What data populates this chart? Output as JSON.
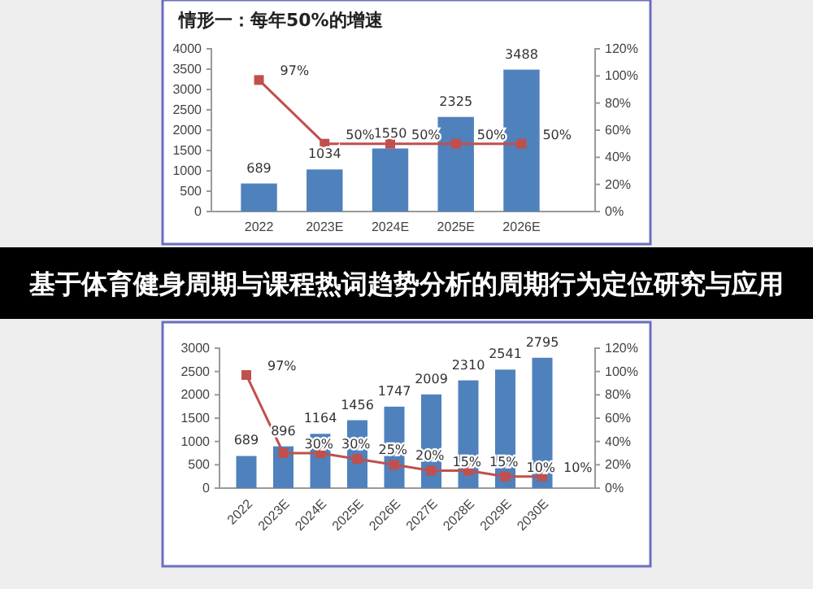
{
  "chart_data": [
    {
      "type": "bar",
      "title": "情形一：每年50%的增速",
      "categories": [
        "2022",
        "2023E",
        "2024E",
        "2025E",
        "2026E"
      ],
      "ylim": [
        0,
        4000
      ],
      "yticks": [
        0,
        500,
        1000,
        1500,
        2000,
        2500,
        3000,
        3500,
        4000
      ],
      "y2lim": [
        0,
        120
      ],
      "y2ticks": [
        {
          "value": 0,
          "label": "0%"
        },
        {
          "value": 20,
          "label": "20%"
        },
        {
          "value": 40,
          "label": "40%"
        },
        {
          "value": 60,
          "label": "60%"
        },
        {
          "value": 80,
          "label": "80%"
        },
        {
          "value": 100,
          "label": "100%"
        },
        {
          "value": 120,
          "label": "120%"
        }
      ],
      "marker": "square",
      "series": [
        {
          "type": "bar",
          "color": "#4f81bd",
          "values": [
            689,
            1034,
            1550,
            2325,
            3488
          ],
          "value_labels": [
            "689",
            "1034",
            "1550",
            "2325",
            "3488"
          ]
        },
        {
          "type": "line",
          "axis": "y2",
          "color": "#c0504d",
          "values": [
            97,
            50,
            50,
            50,
            50
          ],
          "value_labels": [
            "97%",
            "50%",
            "50%",
            "50%",
            "50%"
          ]
        }
      ]
    },
    {
      "type": "other",
      "title": "基于体育健身周期与课程热词趋势分析的周期行为定位研究与应用"
    },
    {
      "type": "bar",
      "categories": [
        "2022",
        "2023E",
        "2024E",
        "2025E",
        "2026E",
        "2027E",
        "2028E",
        "2029E",
        "2030E"
      ],
      "ylim": [
        0,
        3000
      ],
      "yticks": [
        0,
        500,
        1000,
        1500,
        2000,
        2500,
        3000
      ],
      "y2lim": [
        0,
        120
      ],
      "y2ticks": [
        {
          "value": 0,
          "label": "0%"
        },
        {
          "value": 20,
          "label": "20%"
        },
        {
          "value": 40,
          "label": "40%"
        },
        {
          "value": 60,
          "label": "60%"
        },
        {
          "value": 80,
          "label": "80%"
        },
        {
          "value": 100,
          "label": "100%"
        },
        {
          "value": 120,
          "label": "120%"
        }
      ],
      "marker": "square",
      "series": [
        {
          "type": "bar",
          "color": "#4f81bd",
          "values": [
            689,
            896,
            1164,
            1456,
            1747,
            2009,
            2310,
            2541,
            2795
          ],
          "value_labels": [
            "689",
            "896",
            "1164",
            "1456",
            "1747",
            "2009",
            "2310",
            "2541",
            "2795"
          ]
        },
        {
          "type": "line",
          "axis": "y2",
          "color": "#c0504d",
          "values": [
            97,
            30,
            30,
            25,
            20,
            15,
            15,
            10,
            10
          ],
          "value_labels": [
            "97%",
            "30%",
            "30%",
            "25%",
            "20%",
            "15%",
            "15%",
            "10%",
            "10%"
          ]
        }
      ]
    }
  ]
}
